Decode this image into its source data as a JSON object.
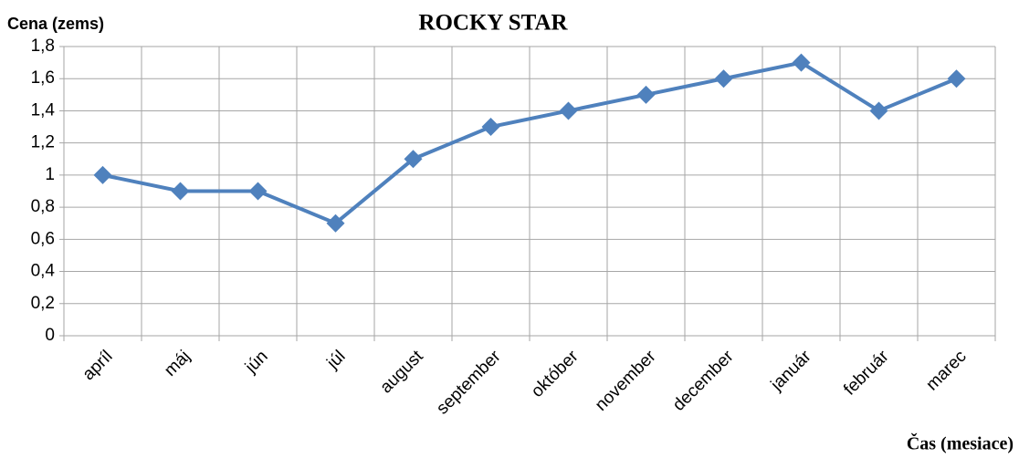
{
  "chart_data": {
    "type": "line",
    "title": "ROCKY STAR",
    "y_label": "Cena (zems)",
    "x_label": "Čas (mesiace)",
    "categories": [
      "apríl",
      "máj",
      "jún",
      "júl",
      "august",
      "september",
      "október",
      "november",
      "december",
      "január",
      "február",
      "marec"
    ],
    "series": [
      {
        "name": "ROCKY STAR",
        "color": "#4f81bd",
        "values": [
          1,
          0.9,
          0.9,
          0.7,
          1.1,
          1.3,
          1.4,
          1.5,
          1.6,
          1.7,
          1.4,
          1.6
        ]
      }
    ],
    "ylim": [
      0,
      1.8
    ],
    "yticks": [
      0,
      {
        "value": 0.2,
        "label": "0,2"
      },
      {
        "value": 0.4,
        "label": "0,4"
      },
      {
        "value": 0.6,
        "label": "0,6"
      },
      {
        "value": 0.8,
        "label": "0,8"
      },
      1,
      {
        "value": 1.2,
        "label": "1,2"
      },
      {
        "value": 1.4,
        "label": "1,4"
      },
      {
        "value": 1.6,
        "label": "1,6"
      },
      {
        "value": 1.8,
        "label": "1,8"
      }
    ],
    "grid": true
  }
}
